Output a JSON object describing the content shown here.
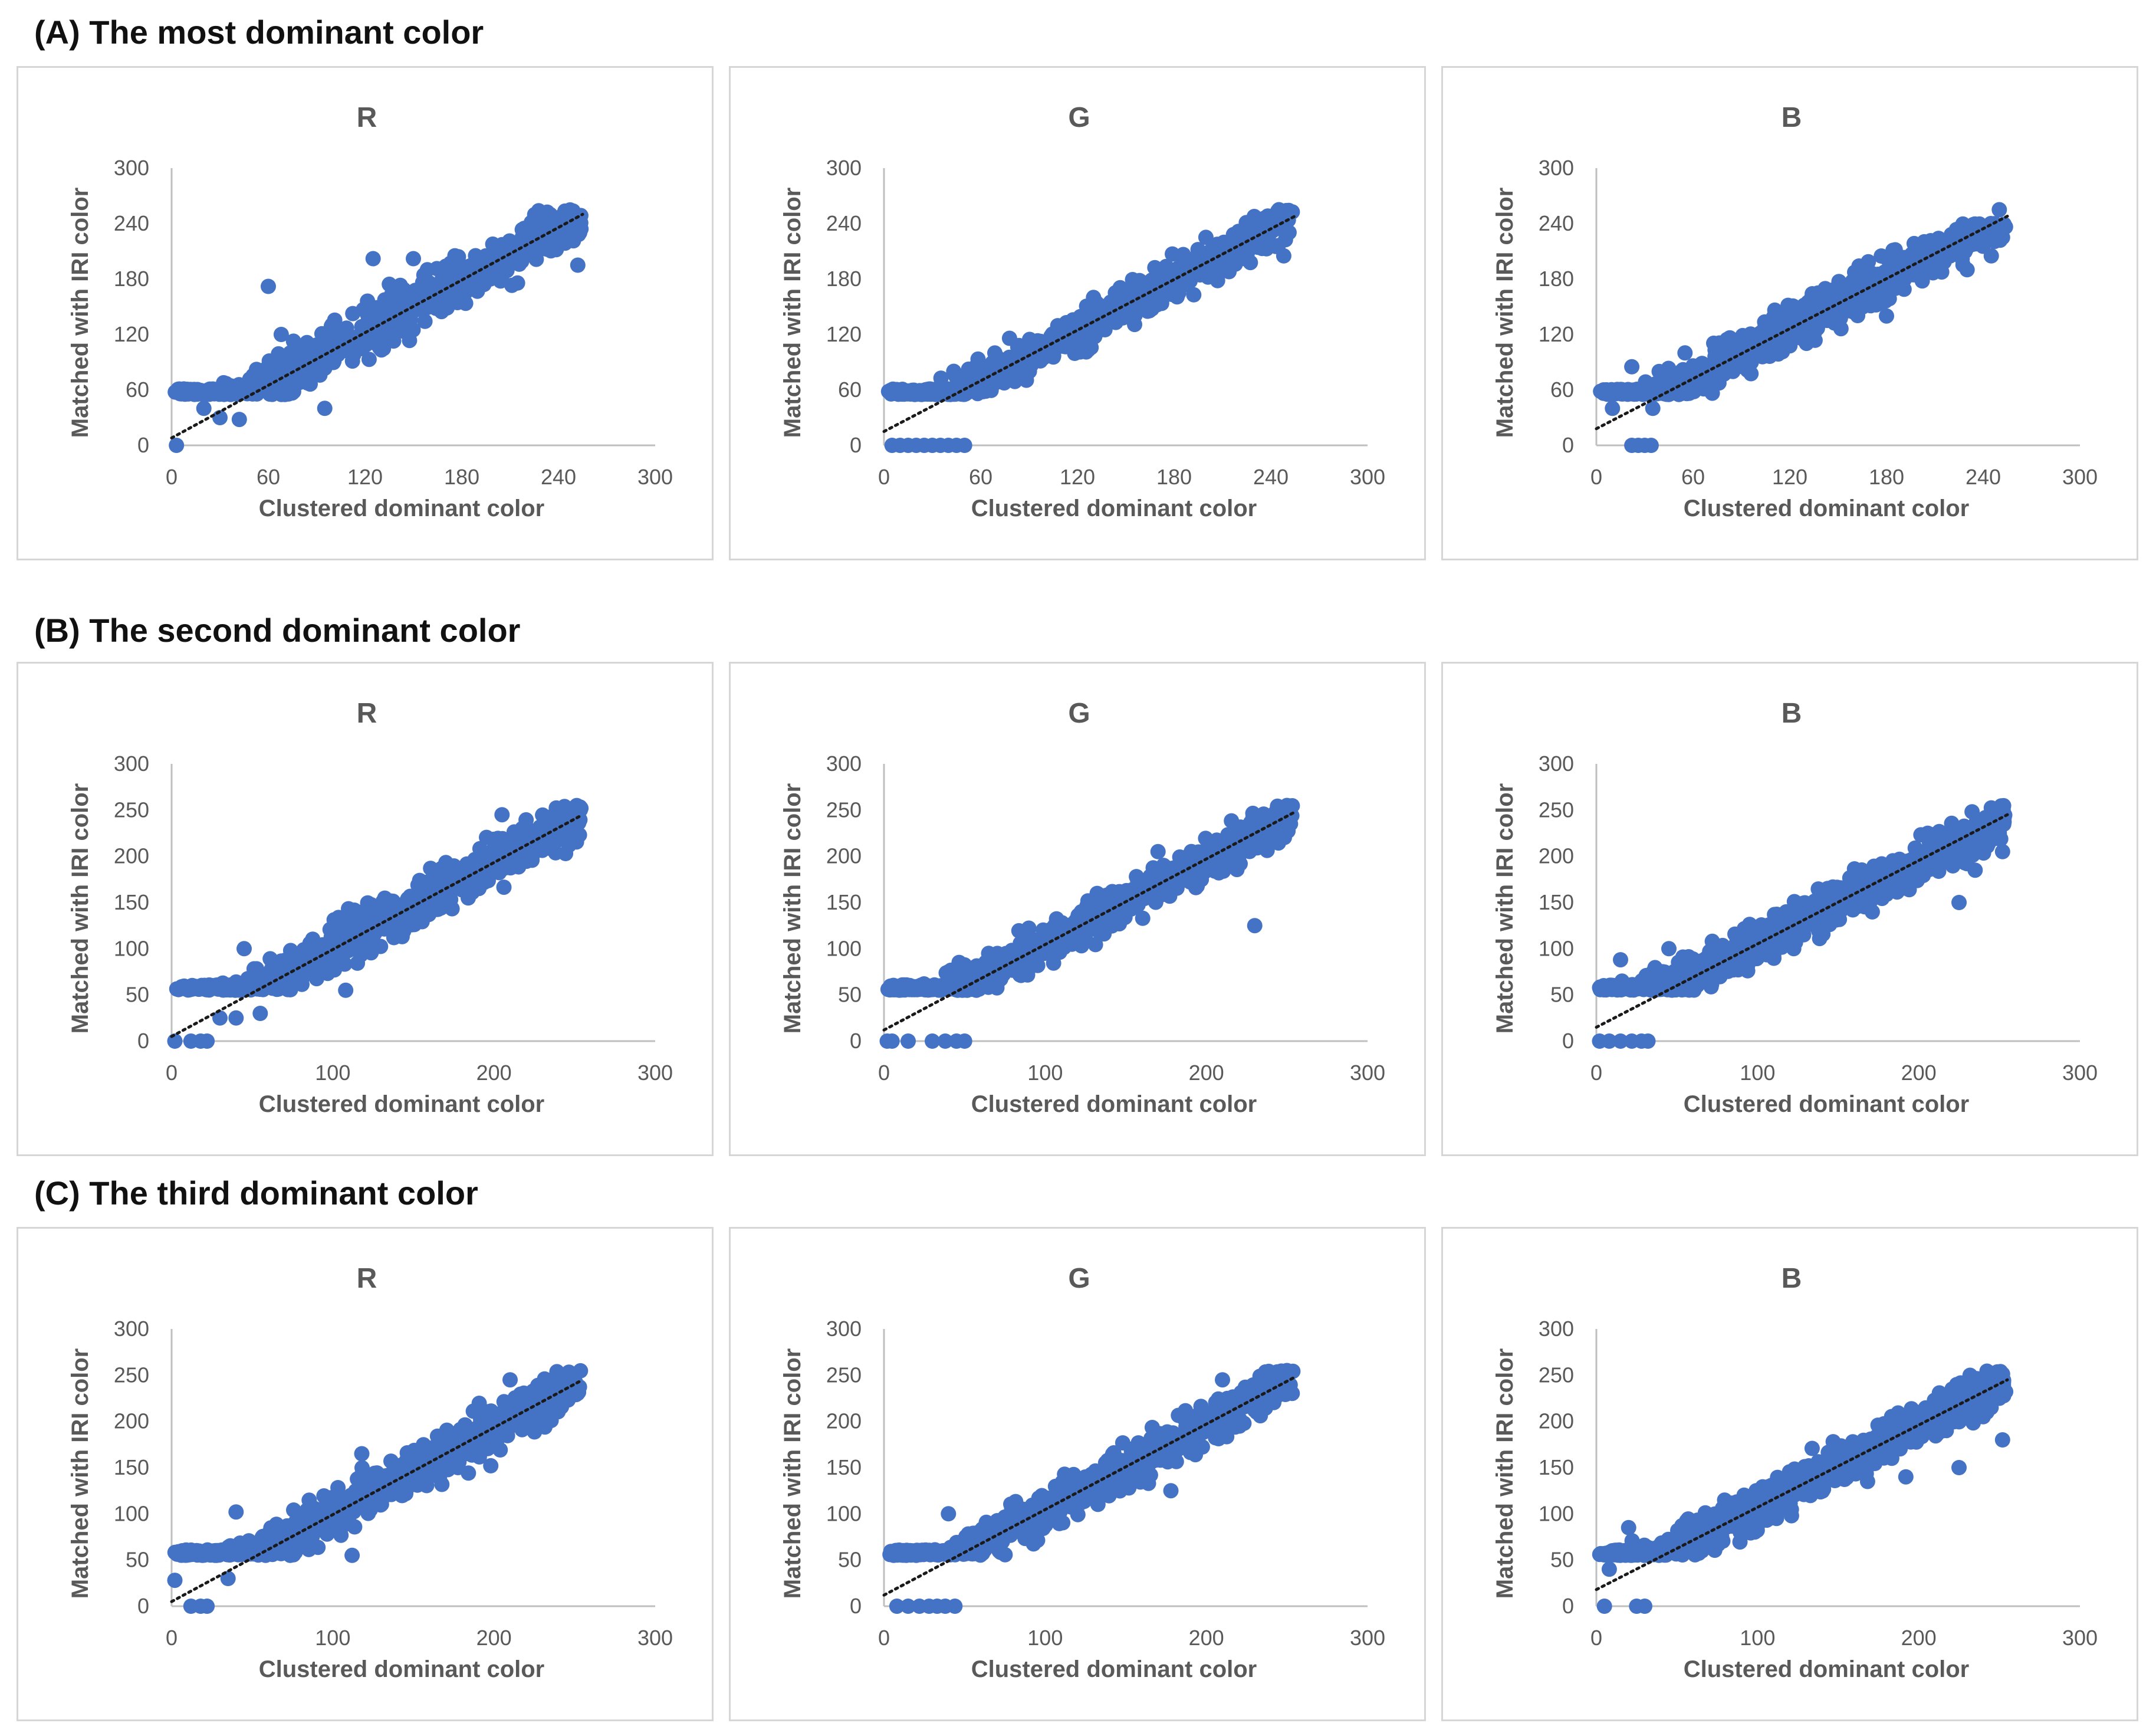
{
  "sections": [
    {
      "title": "(A) The most dominant color"
    },
    {
      "title": "(B) The second dominant color"
    },
    {
      "title": "(C) The third dominant color"
    }
  ],
  "colors": {
    "points": "#4472C4",
    "trendline": "#1a1a1a",
    "axis": "#bfbfbf"
  },
  "chart_data": [
    {
      "type": "scatter",
      "section": "A",
      "title": "R",
      "xlabel": "Clustered dominant color",
      "ylabel": "Matched with IRI color",
      "xlim": [
        0,
        300
      ],
      "ylim": [
        0,
        300
      ],
      "xticks": [
        0,
        60,
        120,
        180,
        240,
        300
      ],
      "yticks": [
        0,
        60,
        120,
        180,
        240,
        300
      ],
      "trendline": {
        "x": [
          0,
          255
        ],
        "y": [
          8,
          250
        ]
      },
      "lower_y_cap": 55,
      "upper_y_cap": 255,
      "spread": 20,
      "seed": 11,
      "outliers": [
        [
          3,
          0
        ],
        [
          60,
          172
        ],
        [
          125,
          202
        ],
        [
          150,
          202
        ],
        [
          68,
          120
        ],
        [
          252,
          195
        ],
        [
          42,
          28
        ],
        [
          30,
          30
        ],
        [
          95,
          40
        ],
        [
          20,
          40
        ]
      ]
    },
    {
      "type": "scatter",
      "section": "A",
      "title": "G",
      "xlabel": "Clustered dominant color",
      "ylabel": "Matched with IRI color",
      "xlim": [
        0,
        300
      ],
      "ylim": [
        0,
        300
      ],
      "xticks": [
        0,
        60,
        120,
        180,
        240,
        300
      ],
      "yticks": [
        0,
        60,
        120,
        180,
        240,
        300
      ],
      "trendline": {
        "x": [
          0,
          255
        ],
        "y": [
          15,
          248
        ]
      },
      "lower_y_cap": 55,
      "upper_y_cap": 255,
      "spread": 16,
      "seed": 23,
      "outliers": [
        [
          5,
          0
        ],
        [
          10,
          0
        ],
        [
          15,
          0
        ],
        [
          20,
          0
        ],
        [
          25,
          0
        ],
        [
          30,
          0
        ],
        [
          35,
          0
        ],
        [
          40,
          0
        ],
        [
          45,
          0
        ],
        [
          50,
          0
        ],
        [
          248,
          205
        ],
        [
          130,
          160
        ],
        [
          160,
          160
        ],
        [
          245,
          255
        ]
      ]
    },
    {
      "type": "scatter",
      "section": "A",
      "title": "B",
      "xlabel": "Clustered dominant color",
      "ylabel": "Matched with IRI color",
      "xlim": [
        0,
        300
      ],
      "ylim": [
        0,
        300
      ],
      "xticks": [
        0,
        60,
        120,
        180,
        240,
        300
      ],
      "yticks": [
        0,
        60,
        120,
        180,
        240,
        300
      ],
      "trendline": {
        "x": [
          0,
          255
        ],
        "y": [
          18,
          248
        ]
      },
      "lower_y_cap": 55,
      "upper_y_cap": 240,
      "spread": 18,
      "seed": 37,
      "outliers": [
        [
          22,
          0
        ],
        [
          26,
          0
        ],
        [
          30,
          0
        ],
        [
          34,
          0
        ],
        [
          22,
          85
        ],
        [
          55,
          100
        ],
        [
          180,
          140
        ],
        [
          230,
          190
        ],
        [
          245,
          205
        ],
        [
          252,
          225
        ],
        [
          250,
          255
        ],
        [
          10,
          40
        ],
        [
          35,
          40
        ]
      ]
    },
    {
      "type": "scatter",
      "section": "B",
      "title": "R",
      "xlabel": "Clustered dominant color",
      "ylabel": "Matched with IRI color",
      "xlim": [
        0,
        300
      ],
      "ylim": [
        0,
        300
      ],
      "xticks": [
        0,
        100,
        200,
        300
      ],
      "yticks": [
        0,
        50,
        100,
        150,
        200,
        250,
        300
      ],
      "trendline": {
        "x": [
          0,
          255
        ],
        "y": [
          5,
          245
        ]
      },
      "lower_y_cap": 55,
      "upper_y_cap": 255,
      "spread": 18,
      "seed": 51,
      "outliers": [
        [
          2,
          0
        ],
        [
          12,
          0
        ],
        [
          18,
          0
        ],
        [
          22,
          0
        ],
        [
          45,
          100
        ],
        [
          108,
          55
        ],
        [
          205,
          245
        ],
        [
          40,
          25
        ],
        [
          55,
          30
        ],
        [
          30,
          25
        ]
      ]
    },
    {
      "type": "scatter",
      "section": "B",
      "title": "G",
      "xlabel": "Clustered dominant color",
      "ylabel": "Matched with IRI color",
      "xlim": [
        0,
        300
      ],
      "ylim": [
        0,
        300
      ],
      "xticks": [
        0,
        100,
        200,
        300
      ],
      "yticks": [
        0,
        50,
        100,
        150,
        200,
        250,
        300
      ],
      "trendline": {
        "x": [
          0,
          255
        ],
        "y": [
          12,
          248
        ]
      },
      "lower_y_cap": 55,
      "upper_y_cap": 255,
      "spread": 16,
      "seed": 67,
      "outliers": [
        [
          2,
          0
        ],
        [
          5,
          0
        ],
        [
          15,
          0
        ],
        [
          30,
          0
        ],
        [
          38,
          0
        ],
        [
          45,
          0
        ],
        [
          50,
          0
        ],
        [
          230,
          125
        ],
        [
          170,
          205
        ],
        [
          40,
          75
        ],
        [
          250,
          255
        ]
      ]
    },
    {
      "type": "scatter",
      "section": "B",
      "title": "B",
      "xlabel": "Clustered dominant color",
      "ylabel": "Matched with IRI color",
      "xlim": [
        0,
        300
      ],
      "ylim": [
        0,
        300
      ],
      "xticks": [
        0,
        100,
        200,
        300
      ],
      "yticks": [
        0,
        50,
        100,
        150,
        200,
        250,
        300
      ],
      "trendline": {
        "x": [
          0,
          255
        ],
        "y": [
          15,
          245
        ]
      },
      "lower_y_cap": 55,
      "upper_y_cap": 255,
      "spread": 18,
      "seed": 79,
      "outliers": [
        [
          2,
          0
        ],
        [
          8,
          0
        ],
        [
          15,
          0
        ],
        [
          22,
          0
        ],
        [
          28,
          0
        ],
        [
          32,
          0
        ],
        [
          15,
          88
        ],
        [
          225,
          150
        ],
        [
          235,
          185
        ],
        [
          252,
          205
        ],
        [
          250,
          225
        ],
        [
          45,
          100
        ]
      ]
    },
    {
      "type": "scatter",
      "section": "C",
      "title": "R",
      "xlabel": "Clustered dominant color",
      "ylabel": "Matched with IRI color",
      "xlim": [
        0,
        300
      ],
      "ylim": [
        0,
        300
      ],
      "xticks": [
        0,
        100,
        200,
        300
      ],
      "yticks": [
        0,
        50,
        100,
        150,
        200,
        250,
        300
      ],
      "trendline": {
        "x": [
          0,
          255
        ],
        "y": [
          5,
          245
        ]
      },
      "lower_y_cap": 55,
      "upper_y_cap": 255,
      "spread": 18,
      "seed": 89,
      "outliers": [
        [
          2,
          28
        ],
        [
          12,
          0
        ],
        [
          18,
          0
        ],
        [
          22,
          0
        ],
        [
          40,
          102
        ],
        [
          118,
          165
        ],
        [
          112,
          55
        ],
        [
          210,
          245
        ],
        [
          198,
          152
        ],
        [
          35,
          30
        ]
      ]
    },
    {
      "type": "scatter",
      "section": "C",
      "title": "G",
      "xlabel": "Clustered dominant color",
      "ylabel": "Matched with IRI color",
      "xlim": [
        0,
        300
      ],
      "ylim": [
        0,
        300
      ],
      "xticks": [
        0,
        100,
        200,
        300
      ],
      "yticks": [
        0,
        50,
        100,
        150,
        200,
        250,
        300
      ],
      "trendline": {
        "x": [
          0,
          255
        ],
        "y": [
          12,
          248
        ]
      },
      "lower_y_cap": 55,
      "upper_y_cap": 255,
      "spread": 16,
      "seed": 97,
      "outliers": [
        [
          8,
          0
        ],
        [
          15,
          0
        ],
        [
          22,
          0
        ],
        [
          28,
          0
        ],
        [
          33,
          0
        ],
        [
          38,
          0
        ],
        [
          44,
          0
        ],
        [
          40,
          100
        ],
        [
          178,
          125
        ],
        [
          210,
          245
        ],
        [
          250,
          255
        ]
      ]
    },
    {
      "type": "scatter",
      "section": "C",
      "title": "B",
      "xlabel": "Clustered dominant color",
      "ylabel": "Matched with IRI color",
      "xlim": [
        0,
        300
      ],
      "ylim": [
        0,
        300
      ],
      "xticks": [
        0,
        100,
        200,
        300
      ],
      "yticks": [
        0,
        50,
        100,
        150,
        200,
        250,
        300
      ],
      "trendline": {
        "x": [
          0,
          255
        ],
        "y": [
          18,
          245
        ]
      },
      "lower_y_cap": 55,
      "upper_y_cap": 255,
      "spread": 18,
      "seed": 103,
      "outliers": [
        [
          5,
          0
        ],
        [
          25,
          0
        ],
        [
          30,
          0
        ],
        [
          192,
          140
        ],
        [
          225,
          150
        ],
        [
          240,
          205
        ],
        [
          250,
          225
        ],
        [
          252,
          180
        ],
        [
          8,
          40
        ],
        [
          20,
          85
        ]
      ]
    }
  ]
}
